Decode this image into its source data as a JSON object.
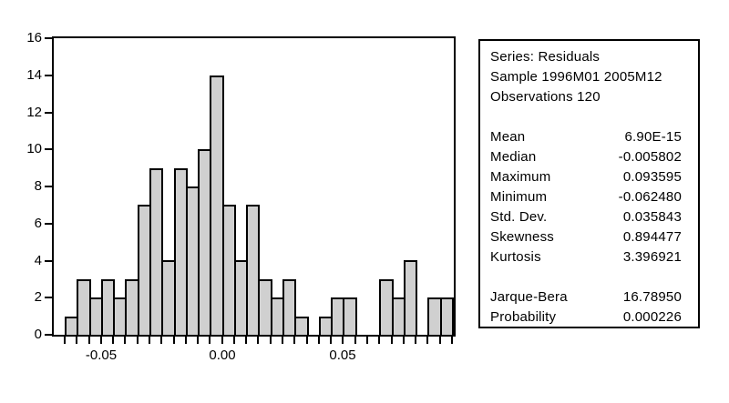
{
  "chart_data": {
    "type": "bar",
    "subtype": "histogram",
    "series_name": "Residuals",
    "values": [
      1,
      3,
      2,
      3,
      2,
      3,
      7,
      9,
      4,
      9,
      8,
      10,
      14,
      7,
      4,
      7,
      3,
      2,
      3,
      1,
      0,
      1,
      2,
      2,
      0,
      0,
      3,
      2,
      4,
      0,
      2,
      2
    ],
    "bin_start": -0.065,
    "bin_width": 0.005,
    "bin_end": 0.095,
    "total_count": 120,
    "ylim": [
      0,
      16
    ],
    "y_ticks": [
      0,
      2,
      4,
      6,
      8,
      10,
      12,
      14,
      16
    ],
    "x_tick_labels": [
      {
        "label": "-0.05",
        "edge_index": 3
      },
      {
        "label": "0.00",
        "edge_index": 13
      },
      {
        "label": "0.05",
        "edge_index": 23
      }
    ],
    "grid": "off",
    "bar_fill": "#d0d0d0",
    "bar_stroke": "#000000"
  },
  "stats_panel": {
    "header_lines": [
      "Series: Residuals",
      "Sample 1996M01 2005M12",
      "Observations 120"
    ],
    "moment_rows": [
      {
        "label": "Mean",
        "value": "6.90E-15"
      },
      {
        "label": "Median",
        "value": "-0.005802"
      },
      {
        "label": "Maximum",
        "value": "0.093595"
      },
      {
        "label": "Minimum",
        "value": "-0.062480"
      },
      {
        "label": "Std. Dev.",
        "value": "0.035843"
      },
      {
        "label": "Skewness",
        "value": "0.894477"
      },
      {
        "label": "Kurtosis",
        "value": "3.396921"
      }
    ],
    "test_rows": [
      {
        "label": "Jarque-Bera",
        "value": "16.78950"
      },
      {
        "label": "Probability",
        "value": "0.000226"
      }
    ]
  }
}
